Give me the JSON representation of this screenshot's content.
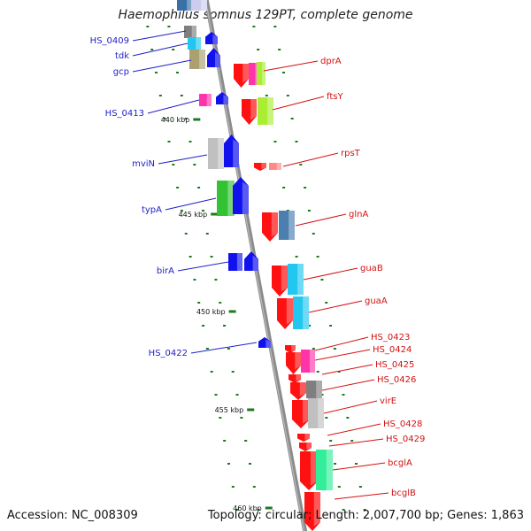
{
  "title": "Haemophilus somnus 129PT, complete genome",
  "footer": {
    "accession": "Accession: NC_008309",
    "summary": "Topology: circular; Length: 2,007,700 bp; Genes: 1,863"
  },
  "colors": {
    "backbone": "#8c8c8c",
    "left_label": "#1f1fc8",
    "right_label": "#d41111",
    "tick": "#1e7a1e"
  },
  "scale_labels": [
    "440 kbp",
    "445 kbp",
    "450 kbp",
    "455 kbp",
    "460 kbp"
  ],
  "genes_left": [
    {
      "label": "HS_0409"
    },
    {
      "label": "tdk"
    },
    {
      "label": "gcp"
    },
    {
      "label": "HS_0413"
    },
    {
      "label": "mviN"
    },
    {
      "label": "typA"
    },
    {
      "label": "birA"
    },
    {
      "label": "HS_0422"
    }
  ],
  "genes_right": [
    {
      "label": "dprA"
    },
    {
      "label": "ftsY"
    },
    {
      "label": "rpsT"
    },
    {
      "label": "glnA"
    },
    {
      "label": "guaB"
    },
    {
      "label": "guaA"
    },
    {
      "label": "HS_0423"
    },
    {
      "label": "HS_0424"
    },
    {
      "label": "HS_0425"
    },
    {
      "label": "HS_0426"
    },
    {
      "label": "virE"
    },
    {
      "label": "HS_0428"
    },
    {
      "label": "HS_0429"
    },
    {
      "label": "bcglA"
    },
    {
      "label": "bcglB"
    }
  ]
}
